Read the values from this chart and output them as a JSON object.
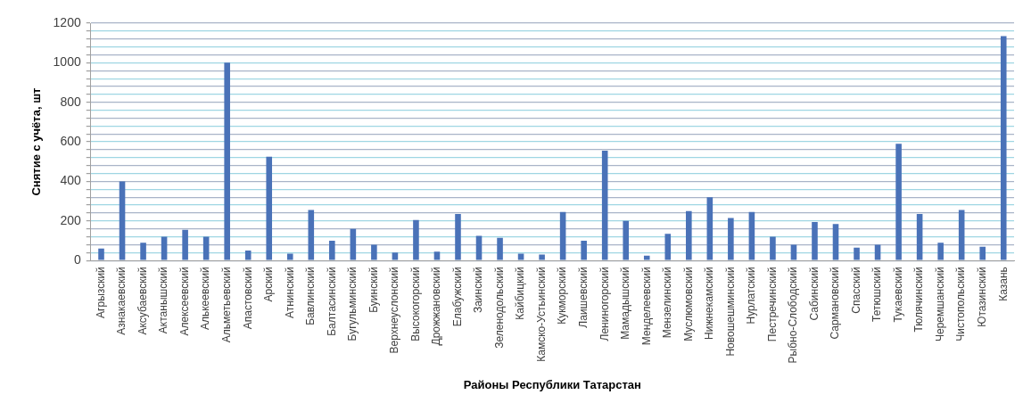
{
  "chart_data": {
    "type": "bar",
    "xlabel": "Районы Республики Татарстан",
    "ylabel": "Снятие с учёта, шт",
    "categories": [
      "Агрызский",
      "Азнакаевский",
      "Аксубаевский",
      "Актанышский",
      "Алексеевский",
      "Алькеевский",
      "Альметьевский",
      "Апастовский",
      "Арский",
      "Атнинский",
      "Бавлинский",
      "Балтасинский",
      "Бугульминский",
      "Буинский",
      "Верхнеуслонский",
      "Высокогорский",
      "Дрожжановский",
      "Елабужский",
      "Заинский",
      "Зеленодольский",
      "Кайбицкий",
      "Камско-Устьинский",
      "Кукморский",
      "Лаишевский",
      "Лениногорский",
      "Мамадышский",
      "Менделеевский",
      "Мензелинский",
      "Муслюмовский",
      "Нижнекамский",
      "Новошешминский",
      "Нурлатский",
      "Пестречинский",
      "Рыбно-Слободский",
      "Сабинский",
      "Сармановский",
      "Спасский",
      "Тетюшский",
      "Тукаевский",
      "Тюлячинский",
      "Черемшанский",
      "Чистопольский",
      "Ютазинский",
      "Казань"
    ],
    "values": [
      60,
      400,
      90,
      120,
      155,
      120,
      1000,
      50,
      525,
      35,
      255,
      100,
      160,
      80,
      40,
      205,
      45,
      235,
      125,
      115,
      35,
      30,
      245,
      100,
      555,
      200,
      25,
      135,
      250,
      320,
      215,
      245,
      120,
      80,
      195,
      185,
      65,
      80,
      590,
      235,
      90,
      255,
      70,
      1135
    ],
    "color": "#4a72b8",
    "ylim": [
      0,
      1200
    ],
    "yticks": [
      0,
      {
        "value": 40,
        "label": null
      },
      {
        "value": 80,
        "label": null
      },
      {
        "value": 120,
        "label": null
      },
      {
        "value": 160,
        "label": null
      },
      200,
      {
        "value": 240,
        "label": null
      },
      {
        "value": 280,
        "label": null
      },
      {
        "value": 320,
        "label": null
      },
      {
        "value": 360,
        "label": null
      },
      400,
      {
        "value": 440,
        "label": null
      },
      {
        "value": 480,
        "label": null
      },
      {
        "value": 520,
        "label": null
      },
      {
        "value": 560,
        "label": null
      },
      600,
      {
        "value": 640,
        "label": null
      },
      {
        "value": 680,
        "label": null
      },
      {
        "value": 720,
        "label": null
      },
      {
        "value": 760,
        "label": null
      },
      800,
      {
        "value": 840,
        "label": null
      },
      {
        "value": 880,
        "label": null
      },
      {
        "value": 920,
        "label": null
      },
      {
        "value": 960,
        "label": null
      },
      1000,
      {
        "value": 1040,
        "label": null
      },
      {
        "value": 1080,
        "label": null
      },
      {
        "value": 1120,
        "label": null
      },
      {
        "value": 1160,
        "label": null
      },
      1200
    ],
    "grid": "y"
  }
}
